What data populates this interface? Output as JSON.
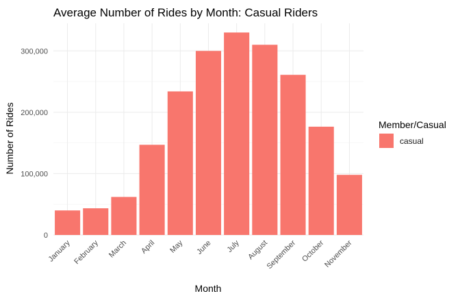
{
  "colors": {
    "casual": "#F8766D"
  },
  "chart_data": {
    "type": "bar",
    "title": "Average Number of Rides by Month: Casual Riders",
    "xlabel": "Month",
    "ylabel": "Number of Rides",
    "categories": [
      "January",
      "February",
      "March",
      "April",
      "May",
      "June",
      "July",
      "August",
      "September",
      "October",
      "November"
    ],
    "series": [
      {
        "name": "casual",
        "values": [
          40000,
          43500,
          62000,
          147000,
          234000,
          300000,
          330000,
          310000,
          261000,
          176500,
          98000
        ]
      }
    ],
    "ylim": [
      0,
      345000
    ],
    "yticks": [
      0,
      100000,
      200000,
      300000
    ],
    "ytick_labels": [
      "0",
      "100,000",
      "200,000",
      "300,000"
    ],
    "grid": true,
    "legend": {
      "title": "Member/Casual",
      "placement": "right"
    }
  }
}
